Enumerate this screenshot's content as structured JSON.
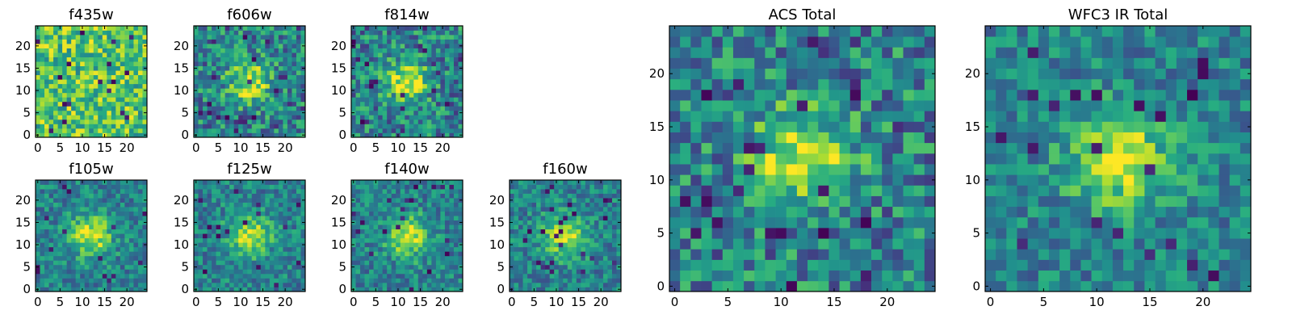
{
  "chart_data": [
    {
      "type": "heatmap",
      "title": "f435w",
      "xlim": [
        0,
        25
      ],
      "ylim": [
        0,
        25
      ],
      "x_ticks": [
        "0",
        "5",
        "10",
        "15",
        "20"
      ],
      "y_ticks": [
        "0",
        "5",
        "10",
        "15",
        "20"
      ],
      "colormap": "viridis",
      "center_bright": false,
      "noise": "high"
    },
    {
      "type": "heatmap",
      "title": "f606w",
      "xlim": [
        0,
        25
      ],
      "ylim": [
        0,
        25
      ],
      "x_ticks": [
        "0",
        "5",
        "10",
        "15",
        "20"
      ],
      "y_ticks": [
        "0",
        "5",
        "10",
        "15",
        "20"
      ],
      "colormap": "viridis",
      "center_bright": true,
      "noise": "high"
    },
    {
      "type": "heatmap",
      "title": "f814w",
      "xlim": [
        0,
        25
      ],
      "ylim": [
        0,
        25
      ],
      "x_ticks": [
        "0",
        "5",
        "10",
        "15",
        "20"
      ],
      "y_ticks": [
        "0",
        "5",
        "10",
        "15",
        "20"
      ],
      "colormap": "viridis",
      "center_bright": true,
      "noise": "high"
    },
    {
      "type": "heatmap",
      "title": "f105w",
      "xlim": [
        0,
        25
      ],
      "ylim": [
        0,
        25
      ],
      "x_ticks": [
        "0",
        "5",
        "10",
        "15",
        "20"
      ],
      "y_ticks": [
        "0",
        "5",
        "10",
        "15",
        "20"
      ],
      "colormap": "viridis",
      "center_bright": true,
      "noise": "medium"
    },
    {
      "type": "heatmap",
      "title": "f125w",
      "xlim": [
        0,
        25
      ],
      "ylim": [
        0,
        25
      ],
      "x_ticks": [
        "0",
        "5",
        "10",
        "15",
        "20"
      ],
      "y_ticks": [
        "0",
        "5",
        "10",
        "15",
        "20"
      ],
      "colormap": "viridis",
      "center_bright": true,
      "noise": "medium"
    },
    {
      "type": "heatmap",
      "title": "f140w",
      "xlim": [
        0,
        25
      ],
      "ylim": [
        0,
        25
      ],
      "x_ticks": [
        "0",
        "5",
        "10",
        "15",
        "20"
      ],
      "y_ticks": [
        "0",
        "5",
        "10",
        "15",
        "20"
      ],
      "colormap": "viridis",
      "center_bright": true,
      "noise": "medium"
    },
    {
      "type": "heatmap",
      "title": "f160w",
      "xlim": [
        0,
        25
      ],
      "ylim": [
        0,
        25
      ],
      "x_ticks": [
        "0",
        "5",
        "10",
        "15",
        "20"
      ],
      "y_ticks": [
        "0",
        "5",
        "10",
        "15",
        "20"
      ],
      "colormap": "viridis",
      "center_bright": true,
      "noise": "medium"
    },
    {
      "type": "heatmap",
      "title": "ACS Total",
      "xlim": [
        0,
        25
      ],
      "ylim": [
        0,
        25
      ],
      "x_ticks": [
        "0",
        "5",
        "10",
        "15",
        "20"
      ],
      "y_ticks": [
        "0",
        "5",
        "10",
        "15",
        "20"
      ],
      "colormap": "viridis",
      "center_bright": true,
      "noise": "high"
    },
    {
      "type": "heatmap",
      "title": "WFC3 IR Total",
      "xlim": [
        0,
        25
      ],
      "ylim": [
        0,
        25
      ],
      "x_ticks": [
        "0",
        "5",
        "10",
        "15",
        "20"
      ],
      "y_ticks": [
        "0",
        "5",
        "10",
        "15",
        "20"
      ],
      "colormap": "viridis",
      "center_bright": true,
      "noise": "medium"
    }
  ]
}
